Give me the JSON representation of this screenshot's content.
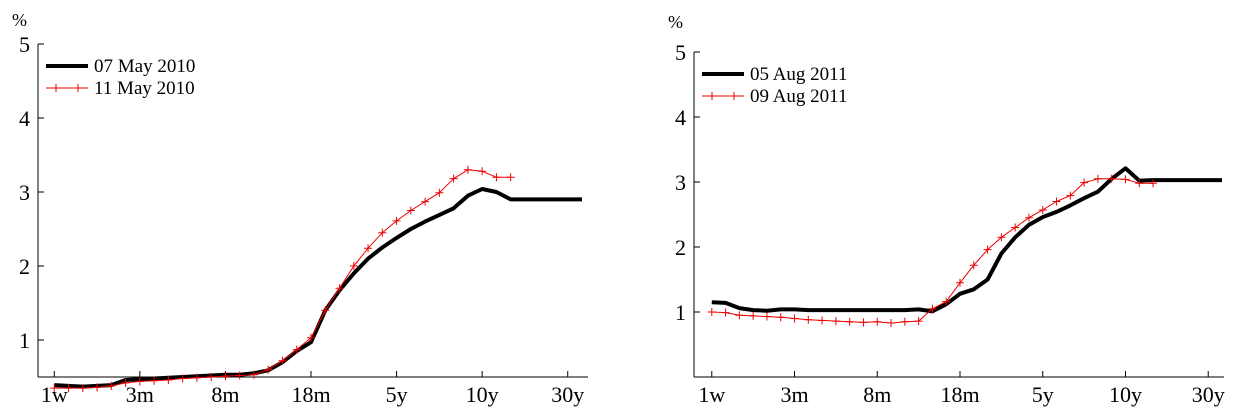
{
  "chart_data": [
    {
      "type": "line",
      "ylabel": "%",
      "ylim": [
        0.5,
        5
      ],
      "y_ticks": [
        "1",
        "2",
        "3",
        "4",
        "5"
      ],
      "x_tick_labels": [
        "1w",
        "3m",
        "8m",
        "18m",
        "5y",
        "10y",
        "30y"
      ],
      "x_tick_positions": [
        1,
        7,
        13,
        19,
        25,
        31,
        37
      ],
      "xlim": [
        0,
        38
      ],
      "legend_position": "top-left",
      "grid": false,
      "series": [
        {
          "name": "07 May 2010",
          "color": "#000000",
          "marker": "none",
          "x": [
            1,
            2,
            3,
            4,
            5,
            6,
            7,
            8,
            9,
            10,
            11,
            12,
            13,
            14,
            15,
            16,
            17,
            18,
            19,
            20,
            21,
            22,
            23,
            24,
            25,
            26,
            27,
            28,
            29,
            30,
            31,
            32,
            33,
            34,
            35,
            36,
            37,
            38
          ],
          "values": [
            0.39,
            0.38,
            0.37,
            0.38,
            0.39,
            0.46,
            0.47,
            0.48,
            0.49,
            0.5,
            0.51,
            0.52,
            0.53,
            0.53,
            0.55,
            0.59,
            0.7,
            0.85,
            0.97,
            1.4,
            1.67,
            1.9,
            2.1,
            2.25,
            2.38,
            2.5,
            2.6,
            2.69,
            2.78,
            2.95,
            3.04,
            3.0,
            2.9,
            2.9,
            2.9,
            2.9,
            2.9,
            2.9
          ]
        },
        {
          "name": "11 May 2010",
          "color": "#ee0000",
          "marker": "plus",
          "x": [
            1,
            2,
            3,
            4,
            5,
            6,
            7,
            8,
            9,
            10,
            11,
            12,
            13,
            14,
            15,
            16,
            17,
            18,
            19,
            20,
            21,
            22,
            23,
            24,
            25,
            26,
            27,
            28,
            29,
            30,
            31,
            32,
            33
          ],
          "values": [
            0.35,
            0.35,
            0.35,
            0.36,
            0.38,
            0.42,
            0.44,
            0.45,
            0.46,
            0.48,
            0.49,
            0.5,
            0.51,
            0.52,
            0.53,
            0.6,
            0.72,
            0.87,
            1.03,
            1.4,
            1.7,
            2.0,
            2.24,
            2.45,
            2.61,
            2.75,
            2.87,
            2.99,
            3.18,
            3.3,
            3.28,
            3.2,
            3.2
          ]
        }
      ]
    },
    {
      "type": "line",
      "ylabel": "%",
      "ylim": [
        0,
        5
      ],
      "y_ticks": [
        "1",
        "2",
        "3",
        "4",
        "5"
      ],
      "x_tick_labels": [
        "1w",
        "3m",
        "8m",
        "18m",
        "5y",
        "10y",
        "30y"
      ],
      "x_tick_positions": [
        1,
        7,
        13,
        19,
        25,
        31,
        37
      ],
      "xlim": [
        0,
        38
      ],
      "legend_position": "top-left",
      "grid": false,
      "series": [
        {
          "name": "05 Aug 2011",
          "color": "#000000",
          "marker": "none",
          "x": [
            1,
            2,
            3,
            4,
            5,
            6,
            7,
            8,
            9,
            10,
            11,
            12,
            13,
            14,
            15,
            16,
            17,
            18,
            19,
            20,
            21,
            22,
            23,
            24,
            25,
            26,
            27,
            28,
            29,
            30,
            31,
            32,
            33,
            34,
            35,
            36,
            37,
            38
          ],
          "values": [
            1.15,
            1.14,
            1.06,
            1.03,
            1.02,
            1.04,
            1.04,
            1.03,
            1.03,
            1.03,
            1.03,
            1.03,
            1.03,
            1.03,
            1.03,
            1.04,
            1.01,
            1.12,
            1.28,
            1.35,
            1.5,
            1.9,
            2.15,
            2.34,
            2.46,
            2.54,
            2.64,
            2.75,
            2.85,
            3.05,
            3.21,
            3.02,
            3.03,
            3.03,
            3.03,
            3.03,
            3.03,
            3.03
          ]
        },
        {
          "name": "09 Aug 2011",
          "color": "#ee0000",
          "marker": "plus",
          "x": [
            1,
            2,
            3,
            4,
            5,
            6,
            7,
            8,
            9,
            10,
            11,
            12,
            13,
            14,
            15,
            16,
            17,
            18,
            19,
            20,
            21,
            22,
            23,
            24,
            25,
            26,
            27,
            28,
            29,
            30,
            31,
            32,
            33
          ],
          "values": [
            1.0,
            0.99,
            0.95,
            0.94,
            0.93,
            0.92,
            0.9,
            0.88,
            0.87,
            0.86,
            0.85,
            0.84,
            0.85,
            0.83,
            0.85,
            0.86,
            1.05,
            1.16,
            1.45,
            1.72,
            1.96,
            2.15,
            2.3,
            2.45,
            2.57,
            2.7,
            2.79,
            2.99,
            3.05,
            3.05,
            3.04,
            2.98,
            2.98
          ]
        }
      ]
    }
  ]
}
